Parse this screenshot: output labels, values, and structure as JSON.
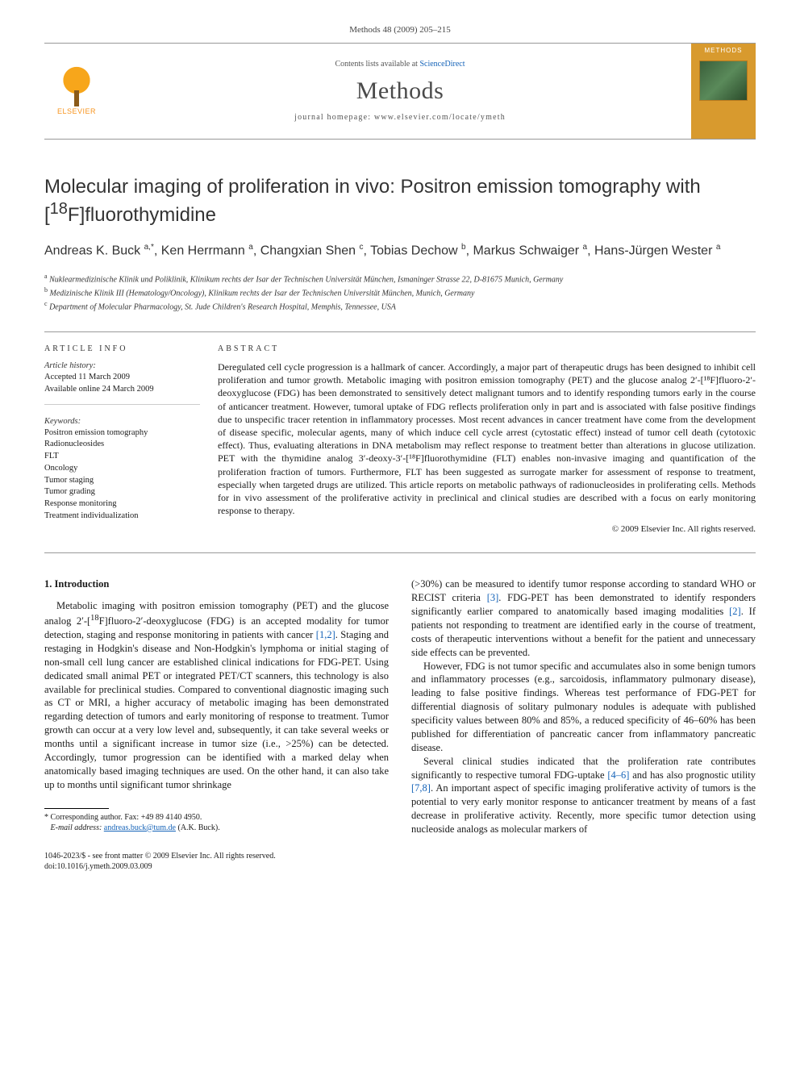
{
  "citation_line": "Methods 48 (2009) 205–215",
  "masthead": {
    "publisher_name": "ELSEVIER",
    "contents_prefix": "Contents lists available at ",
    "contents_link_text": "ScienceDirect",
    "journal_name": "Methods",
    "homepage_label": "journal homepage: www.elsevier.com/locate/ymeth",
    "cover_title": "METHODS"
  },
  "article": {
    "title_html": "Molecular imaging of proliferation in vivo: Positron emission tomography with [<sup>18</sup>F]fluorothymidine",
    "authors_html": "Andreas K. Buck <sup>a,*</sup>, Ken Herrmann <sup>a</sup>, Changxian Shen <sup>c</sup>, Tobias Dechow <sup>b</sup>, Markus Schwaiger <sup>a</sup>, Hans-Jürgen Wester <sup>a</sup>",
    "affiliations": [
      {
        "key": "a",
        "text": "Nuklearmedizinische Klinik und Poliklinik, Klinikum rechts der Isar der Technischen Universität München, Ismaninger Strasse 22, D-81675 Munich, Germany"
      },
      {
        "key": "b",
        "text": "Medizinische Klinik III (Hematology/Oncology), Klinikum rechts der Isar der Technischen Universität München, Munich, Germany"
      },
      {
        "key": "c",
        "text": "Department of Molecular Pharmacology, St. Jude Children's Research Hospital, Memphis, Tennessee, USA"
      }
    ]
  },
  "info": {
    "heading": "ARTICLE INFO",
    "history_label": "Article history:",
    "accepted": "Accepted 11 March 2009",
    "available": "Available online 24 March 2009",
    "keywords_label": "Keywords:",
    "keywords": [
      "Positron emission tomography",
      "Radionucleosides",
      "FLT",
      "Oncology",
      "Tumor staging",
      "Tumor grading",
      "Response monitoring",
      "Treatment individualization"
    ]
  },
  "abstract": {
    "heading": "ABSTRACT",
    "text": "Deregulated cell cycle progression is a hallmark of cancer. Accordingly, a major part of therapeutic drugs has been designed to inhibit cell proliferation and tumor growth. Metabolic imaging with positron emission tomography (PET) and the glucose analog 2′-[¹⁸F]fluoro-2′-deoxyglucose (FDG) has been demonstrated to sensitively detect malignant tumors and to identify responding tumors early in the course of anticancer treatment. However, tumoral uptake of FDG reflects proliferation only in part and is associated with false positive findings due to unspecific tracer retention in inflammatory processes. Most recent advances in cancer treatment have come from the development of disease specific, molecular agents, many of which induce cell cycle arrest (cytostatic effect) instead of tumor cell death (cytotoxic effect). Thus, evaluating alterations in DNA metabolism may reflect response to treatment better than alterations in glucose utilization. PET with the thymidine analog 3′-deoxy-3′-[¹⁸F]fluorothymidine (FLT) enables non-invasive imaging and quantification of the proliferation fraction of tumors. Furthermore, FLT has been suggested as surrogate marker for assessment of response to treatment, especially when targeted drugs are utilized. This article reports on metabolic pathways of radionucleosides in proliferating cells. Methods for in vivo assessment of the proliferative activity in preclinical and clinical studies are described with a focus on early monitoring response to therapy.",
    "copyright": "© 2009 Elsevier Inc. All rights reserved."
  },
  "section1": {
    "heading": "1. Introduction",
    "p1_html": "Metabolic imaging with positron emission tomography (PET) and the glucose analog 2′-[<sup>18</sup>F]fluoro-2′-deoxyglucose (FDG) is an accepted modality for tumor detection, staging and response monitoring in patients with cancer <span class=\"ref-link\">[1,2]</span>. Staging and restaging in Hodgkin's disease and Non-Hodgkin's lymphoma or initial staging of non-small cell lung cancer are established clinical indications for FDG-PET. Using dedicated small animal PET or integrated PET/CT scanners, this technology is also available for preclinical studies. Compared to conventional diagnostic imaging such as CT or MRI, a higher accuracy of metabolic imaging has been demonstrated regarding detection of tumors and early monitoring of response to treatment. Tumor growth can occur at a very low level and, subsequently, it can take several weeks or months until a significant increase in tumor size (i.e., &gt;25%) can be detected. Accordingly, tumor progression can be identified with a marked delay when anatomically based imaging techniques are used. On the other hand, it can also take up to months until significant tumor shrinkage",
    "p1b_html": "(&gt;30%) can be measured to identify tumor response according to standard WHO or RECIST criteria <span class=\"ref-link\">[3]</span>. FDG-PET has been demonstrated to identify responders significantly earlier compared to anatomically based imaging modalities <span class=\"ref-link\">[2]</span>. If patients not responding to treatment are identified early in the course of treatment, costs of therapeutic interventions without a benefit for the patient and unnecessary side effects can be prevented.",
    "p2_html": "However, FDG is not tumor specific and accumulates also in some benign tumors and inflammatory processes (e.g., sarcoidosis, inflammatory pulmonary disease), leading to false positive findings. Whereas test performance of FDG-PET for differential diagnosis of solitary pulmonary nodules is adequate with published specificity values between 80% and 85%, a reduced specificity of 46–60% has been published for differentiation of pancreatic cancer from inflammatory pancreatic disease.",
    "p3_html": "Several clinical studies indicated that the proliferation rate contributes significantly to respective tumoral FDG-uptake <span class=\"ref-link\">[4–6]</span> and has also prognostic utility <span class=\"ref-link\">[7,8]</span>. An important aspect of specific imaging proliferative activity of tumors is the potential to very early monitor response to anticancer treatment by means of a fast decrease in proliferative activity. Recently, more specific tumor detection using nucleoside analogs as molecular markers of"
  },
  "footnotes": {
    "corr": "* Corresponding author. Fax: +49 89 4140 4950.",
    "email_label": "E-mail address:",
    "email": "andreas.buck@tum.de",
    "email_author": "(A.K. Buck)."
  },
  "footer": {
    "line1": "1046-2023/$ - see front matter © 2009 Elsevier Inc. All rights reserved.",
    "line2": "doi:10.1016/j.ymeth.2009.03.009"
  },
  "colors": {
    "link": "#1563b8",
    "rule": "#999999",
    "elsevier_orange": "#f7941e"
  }
}
